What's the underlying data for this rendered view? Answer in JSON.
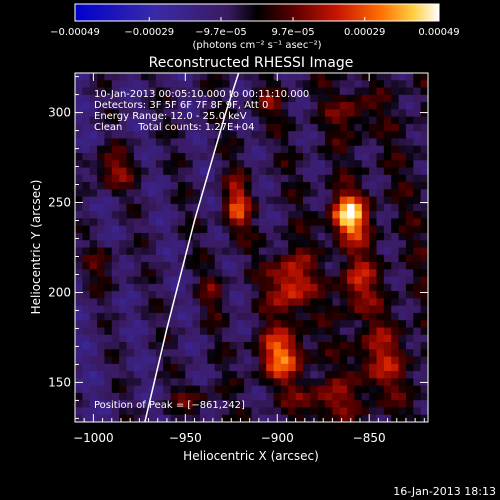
{
  "chart_data": {
    "type": "heatmap",
    "title": "Reconstructed RHESSI Image",
    "xlabel": "Heliocentric X (arcsec)",
    "ylabel": "Heliocentric Y (arcsec)",
    "xlim": [
      -1010,
      -818
    ],
    "ylim": [
      128,
      322
    ],
    "xticks": [
      -1000,
      -950,
      -900,
      -850
    ],
    "yticks": [
      150,
      200,
      250,
      300
    ],
    "xtick_labels": [
      "−1000",
      "−950",
      "−900",
      "−850"
    ],
    "ytick_labels": [
      "150",
      "200",
      "250",
      "300"
    ],
    "colorbar": {
      "ticks": [
        -0.00049,
        -0.00029,
        -9.7e-05,
        9.7e-05,
        0.00029,
        0.00049
      ],
      "tick_labels": [
        "−0.00049",
        "−0.00029",
        "−9.7e−05",
        "9.7e−05",
        "0.00029",
        "0.00049"
      ],
      "unit_label": "(photons cm⁻² s⁻¹ asec⁻²)",
      "range": [
        -0.00049,
        0.00049
      ]
    },
    "annotations": [
      "10-Jan-2013 00:05:10.000 to 00:11:10.000",
      "Detectors: 3F 5F 6F 7F 8F 9F, Att 0",
      "Energy Range: 12.0 - 25.0 keV",
      "Clean     Total counts: 1.27E+04"
    ],
    "peak_label": "Position of Peak = [−861,242]",
    "peak": [
      -861,
      242
    ],
    "limb_line": [
      [
        -972,
        128
      ],
      [
        -960,
        180
      ],
      [
        -945,
        240
      ],
      [
        -928,
        300
      ],
      [
        -921,
        322
      ]
    ],
    "sources": [
      {
        "x": -861,
        "y": 242,
        "sx": 7,
        "sy": 9,
        "amp": 0.00049
      },
      {
        "x": -893,
        "y": 205,
        "sx": 8,
        "sy": 12,
        "amp": 0.00034
      },
      {
        "x": -898,
        "y": 165,
        "sx": 9,
        "sy": 10,
        "amp": 0.00036
      },
      {
        "x": -922,
        "y": 248,
        "sx": 5,
        "sy": 11,
        "amp": 0.0003
      },
      {
        "x": -857,
        "y": 205,
        "sx": 7,
        "sy": 12,
        "amp": 0.00024
      },
      {
        "x": -845,
        "y": 162,
        "sx": 10,
        "sy": 14,
        "amp": 0.0002
      },
      {
        "x": -990,
        "y": 268,
        "sx": 9,
        "sy": 8,
        "amp": 0.00022
      },
      {
        "x": -860,
        "y": 300,
        "sx": 8,
        "sy": 9,
        "amp": 0.00016
      },
      {
        "x": -905,
        "y": 305,
        "sx": 6,
        "sy": 6,
        "amp": 0.00014
      },
      {
        "x": -995,
        "y": 215,
        "sx": 7,
        "sy": 9,
        "amp": 0.00014
      },
      {
        "x": -935,
        "y": 200,
        "sx": 5,
        "sy": 10,
        "amp": 0.00012
      },
      {
        "x": -945,
        "y": 140,
        "sx": 8,
        "sy": 6,
        "amp": 0.00014
      },
      {
        "x": -875,
        "y": 140,
        "sx": 12,
        "sy": 7,
        "amp": 0.0002
      }
    ]
  },
  "footer": {
    "date": "16-Jan-2013 18:13"
  }
}
